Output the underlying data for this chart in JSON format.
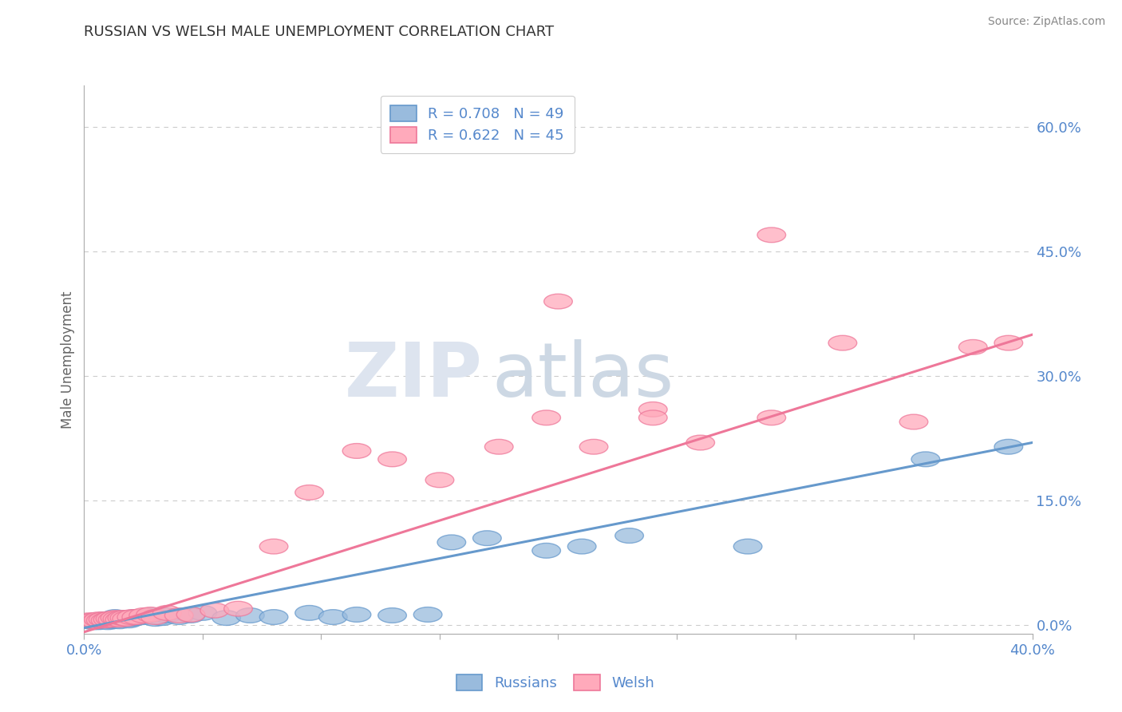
{
  "title": "RUSSIAN VS WELSH MALE UNEMPLOYMENT CORRELATION CHART",
  "source_text": "Source: ZipAtlas.com",
  "ylabel": "Male Unemployment",
  "xlabel": "",
  "xlim": [
    0.0,
    0.4
  ],
  "ylim": [
    -0.01,
    0.65
  ],
  "y_ticks_right": [
    0.0,
    0.15,
    0.3,
    0.45,
    0.6
  ],
  "y_tick_labels_right": [
    "0.0%",
    "15.0%",
    "30.0%",
    "45.0%",
    "60.0%"
  ],
  "grid_color": "#cccccc",
  "background_color": "#ffffff",
  "title_color": "#333333",
  "axis_color": "#5588cc",
  "watermark_zip": "ZIP",
  "watermark_atlas": "atlas",
  "watermark_color_zip": "#d0d8e8",
  "watermark_color_atlas": "#c8d4e0",
  "legend_R1": "R = 0.708",
  "legend_N1": "N = 49",
  "legend_R2": "R = 0.622",
  "legend_N2": "N = 45",
  "blue_color": "#6699cc",
  "pink_color": "#ee7799",
  "blue_fill": "#99bbdd",
  "pink_fill": "#ffaabb",
  "russians_x": [
    0.002,
    0.003,
    0.004,
    0.005,
    0.006,
    0.007,
    0.008,
    0.008,
    0.009,
    0.01,
    0.01,
    0.011,
    0.012,
    0.013,
    0.013,
    0.014,
    0.015,
    0.015,
    0.016,
    0.017,
    0.018,
    0.019,
    0.02,
    0.021,
    0.022,
    0.025,
    0.028,
    0.03,
    0.033,
    0.035,
    0.04,
    0.045,
    0.05,
    0.06,
    0.07,
    0.08,
    0.095,
    0.105,
    0.115,
    0.13,
    0.145,
    0.155,
    0.17,
    0.195,
    0.21,
    0.23,
    0.28,
    0.355,
    0.39
  ],
  "russians_y": [
    0.005,
    0.005,
    0.004,
    0.006,
    0.004,
    0.005,
    0.005,
    0.007,
    0.006,
    0.004,
    0.007,
    0.006,
    0.005,
    0.007,
    0.01,
    0.006,
    0.005,
    0.008,
    0.007,
    0.009,
    0.007,
    0.006,
    0.008,
    0.01,
    0.009,
    0.01,
    0.012,
    0.008,
    0.009,
    0.012,
    0.01,
    0.012,
    0.015,
    0.009,
    0.012,
    0.01,
    0.015,
    0.01,
    0.013,
    0.012,
    0.013,
    0.1,
    0.105,
    0.09,
    0.095,
    0.108,
    0.095,
    0.2,
    0.215
  ],
  "welsh_x": [
    0.002,
    0.003,
    0.004,
    0.005,
    0.006,
    0.007,
    0.008,
    0.009,
    0.01,
    0.011,
    0.012,
    0.013,
    0.014,
    0.015,
    0.016,
    0.017,
    0.018,
    0.02,
    0.022,
    0.025,
    0.028,
    0.03,
    0.035,
    0.04,
    0.045,
    0.055,
    0.065,
    0.08,
    0.095,
    0.115,
    0.13,
    0.15,
    0.175,
    0.195,
    0.215,
    0.24,
    0.26,
    0.29,
    0.32,
    0.35,
    0.375,
    0.39,
    0.2,
    0.24,
    0.29
  ],
  "welsh_y": [
    0.006,
    0.005,
    0.006,
    0.005,
    0.007,
    0.006,
    0.007,
    0.006,
    0.007,
    0.008,
    0.007,
    0.009,
    0.008,
    0.007,
    0.009,
    0.009,
    0.008,
    0.01,
    0.01,
    0.012,
    0.013,
    0.01,
    0.015,
    0.012,
    0.013,
    0.018,
    0.02,
    0.095,
    0.16,
    0.21,
    0.2,
    0.175,
    0.215,
    0.25,
    0.215,
    0.26,
    0.22,
    0.25,
    0.34,
    0.245,
    0.335,
    0.34,
    0.39,
    0.25,
    0.47
  ],
  "blue_line_x0": 0.0,
  "blue_line_y0": -0.003,
  "blue_line_x1": 0.4,
  "blue_line_y1": 0.22,
  "pink_line_x0": 0.0,
  "pink_line_y0": -0.008,
  "pink_line_x1": 0.4,
  "pink_line_y1": 0.35
}
